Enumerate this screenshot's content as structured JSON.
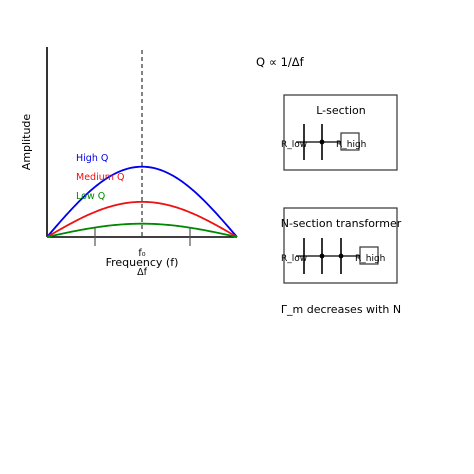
{
  "plot": {
    "axis_y_label": "Amplitude",
    "axis_x_label": "Frequency (f)",
    "center_label": "f₀",
    "bandwidth_label": "Δf",
    "curves": [
      {
        "label": "High Q",
        "color": "#0000ee",
        "peak": 0.37
      },
      {
        "label": "Medium Q",
        "color": "#ee1111",
        "peak": 0.185
      },
      {
        "label": "Low Q",
        "color": "#008800",
        "peak": 0.07
      }
    ]
  },
  "formula": "Q ∝ 1/Δf",
  "l_section": {
    "title": "L-section",
    "left_label": "R_low",
    "right_label": "R_high"
  },
  "n_section": {
    "title": "N-section transformer",
    "left_label": "R_low",
    "right_label": "R_high"
  },
  "caption": "Γ_m decreases with N"
}
